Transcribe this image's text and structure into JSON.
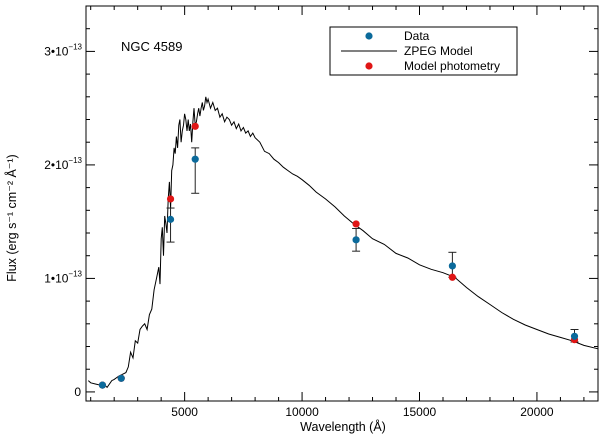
{
  "chart_data": {
    "type": "scatter",
    "annotation": "NGC 4589",
    "xlabel": "Wavelength (Å)",
    "ylabel": "Flux (erg s⁻¹ cm⁻² Å⁻¹)",
    "xlim": [
      800,
      22600
    ],
    "ylim": [
      -0.08,
      3.4
    ],
    "y_scale_label": "×10⁻¹³",
    "x_ticks": [
      5000,
      10000,
      15000,
      20000
    ],
    "x_tick_labels": [
      "5000",
      "10000",
      "15000",
      "20000"
    ],
    "y_ticks": [
      0,
      1,
      2,
      3
    ],
    "y_tick_labels": [
      "0",
      "1•10",
      "2•10",
      "3•10"
    ],
    "y_tick_exponent": "−13",
    "legend": [
      {
        "label": "Data",
        "marker": "circle",
        "color": "#0b6a9b"
      },
      {
        "label": "ZPEG Model",
        "marker": "line",
        "color": "#000000"
      },
      {
        "label": "Model photometry",
        "marker": "circle",
        "color": "#e01515"
      }
    ],
    "series": [
      {
        "name": "Data",
        "color": "#0b6a9b",
        "x": [
          1500,
          2300,
          4400,
          5450,
          12300,
          16400,
          21600
        ],
        "y": [
          0.06,
          0.12,
          1.52,
          2.05,
          1.34,
          1.11,
          0.49
        ],
        "yerr_low": [
          0.0,
          0.0,
          0.2,
          0.3,
          0.1,
          0.1,
          0.05
        ],
        "yerr_high": [
          0.0,
          0.0,
          0.1,
          0.1,
          0.1,
          0.12,
          0.06
        ]
      },
      {
        "name": "Model photometry",
        "color": "#e01515",
        "x": [
          1500,
          2300,
          4400,
          5450,
          12300,
          16400,
          21600
        ],
        "y": [
          0.06,
          0.12,
          1.7,
          2.34,
          1.48,
          1.01,
          0.46
        ]
      },
      {
        "name": "ZPEG Model",
        "color": "#000000",
        "x": [
          900,
          1000,
          1200,
          1400,
          1500,
          1700,
          1900,
          2000,
          2200,
          2300,
          2500,
          2600,
          2700,
          2800,
          2900,
          3000,
          3100,
          3200,
          3300,
          3400,
          3500,
          3600,
          3700,
          3800,
          3900,
          3950,
          4000,
          4050,
          4100,
          4150,
          4200,
          4250,
          4300,
          4350,
          4400,
          4450,
          4500,
          4550,
          4600,
          4650,
          4700,
          4750,
          4800,
          4850,
          4900,
          4950,
          5000,
          5050,
          5100,
          5150,
          5200,
          5250,
          5300,
          5350,
          5400,
          5450,
          5500,
          5550,
          5600,
          5650,
          5700,
          5750,
          5800,
          5850,
          5900,
          5950,
          6000,
          6100,
          6200,
          6300,
          6400,
          6500,
          6600,
          6700,
          6800,
          6900,
          7000,
          7100,
          7200,
          7300,
          7400,
          7500,
          7600,
          7700,
          7800,
          7900,
          8000,
          8200,
          8400,
          8600,
          8800,
          9000,
          9200,
          9400,
          9600,
          9800,
          10000,
          10300,
          10600,
          11000,
          11400,
          11800,
          12200,
          12600,
          13000,
          13500,
          14000,
          14500,
          15000,
          15500,
          16000,
          16500,
          17000,
          17500,
          18000,
          18500,
          19000,
          19500,
          20000,
          20500,
          21000,
          21500,
          22000,
          22600
        ],
        "y": [
          0.1,
          0.08,
          0.07,
          0.06,
          0.08,
          0.04,
          0.1,
          0.11,
          0.14,
          0.15,
          0.17,
          0.22,
          0.35,
          0.3,
          0.45,
          0.43,
          0.55,
          0.58,
          0.6,
          0.55,
          0.68,
          0.73,
          0.9,
          1.0,
          1.1,
          0.95,
          1.35,
          1.45,
          1.2,
          1.55,
          1.48,
          1.4,
          1.7,
          1.85,
          1.62,
          1.95,
          2.0,
          2.15,
          2.1,
          2.25,
          2.15,
          2.35,
          2.4,
          2.2,
          2.3,
          2.35,
          2.45,
          2.4,
          2.3,
          2.4,
          2.3,
          2.36,
          2.2,
          2.38,
          2.5,
          2.35,
          2.38,
          2.45,
          2.5,
          2.43,
          2.5,
          2.55,
          2.48,
          2.52,
          2.6,
          2.55,
          2.58,
          2.5,
          2.55,
          2.48,
          2.5,
          2.42,
          2.45,
          2.38,
          2.42,
          2.4,
          2.35,
          2.38,
          2.32,
          2.36,
          2.3,
          2.33,
          2.28,
          2.3,
          2.25,
          2.28,
          2.24,
          2.2,
          2.12,
          2.1,
          2.05,
          2.02,
          1.98,
          1.95,
          1.92,
          1.9,
          1.87,
          1.82,
          1.76,
          1.7,
          1.63,
          1.55,
          1.48,
          1.42,
          1.35,
          1.3,
          1.22,
          1.18,
          1.12,
          1.08,
          1.05,
          1.01,
          0.92,
          0.84,
          0.77,
          0.7,
          0.64,
          0.59,
          0.55,
          0.51,
          0.48,
          0.45,
          0.41,
          0.38
        ]
      }
    ]
  }
}
